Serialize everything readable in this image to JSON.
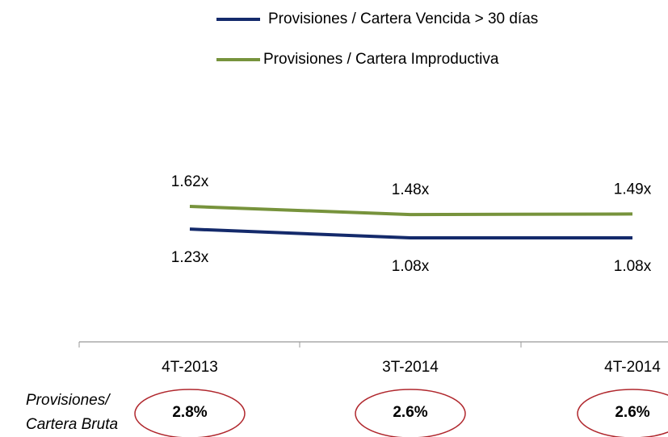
{
  "chart_data": {
    "type": "line",
    "categories": [
      "4T-2013",
      "3T-2014",
      "4T-2014"
    ],
    "series": [
      {
        "name": "Provisiones / Cartera Vencida > 30 días",
        "color": "#142a6b",
        "values": [
          1.23,
          1.08,
          1.08
        ],
        "value_labels": [
          "1.23x",
          "1.08x",
          "1.08x"
        ]
      },
      {
        "name": "Provisiones / Cartera Improductiva",
        "color": "#77933c",
        "values": [
          1.62,
          1.48,
          1.49
        ],
        "value_labels": [
          "1.62x",
          "1.48x",
          "1.49x"
        ]
      }
    ],
    "row_label": [
      "Provisiones/",
      "Cartera Bruta"
    ],
    "row_values": [
      2.8,
      2.6,
      2.6
    ],
    "row_value_labels": [
      "2.8%",
      "2.6%",
      "2.6%"
    ],
    "row_circle_color": "#b0272d"
  }
}
